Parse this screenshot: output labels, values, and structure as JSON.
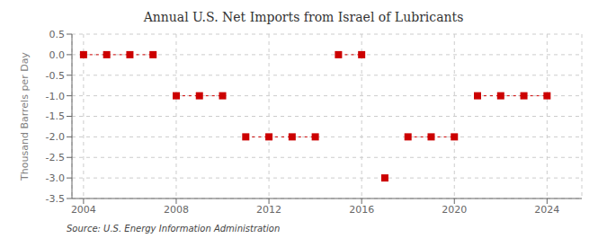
{
  "chart_data": {
    "type": "scatter",
    "title": "Annual U.S. Net Imports from Israel of Lubricants",
    "ylabel": "Thousand Barrels per Day",
    "annotations": [
      "Source: U.S. Energy Information Administration"
    ],
    "x": [
      2004,
      2005,
      2006,
      2007,
      2008,
      2009,
      2010,
      2011,
      2012,
      2013,
      2014,
      2015,
      2016,
      2017,
      2018,
      2019,
      2020,
      2021,
      2022,
      2023,
      2024
    ],
    "values": [
      0,
      0,
      0,
      0,
      -1,
      -1,
      -1,
      -2,
      -2,
      -2,
      -2,
      0,
      0,
      -3,
      -2,
      -2,
      -2,
      -1,
      -1,
      -1,
      -1
    ],
    "color": "#cc0000",
    "marker": "square",
    "line_style": "dashed",
    "grid": true,
    "xlim": [
      2003.5,
      2025.5
    ],
    "ylim": [
      -3.5,
      0.5
    ],
    "xticks": [
      2004,
      2008,
      2012,
      2016,
      2020,
      2024
    ],
    "yticks": [
      0.5,
      {
        "value": 0,
        "label": "0.0"
      },
      -0.5,
      {
        "value": -1,
        "label": "-1.0"
      },
      -1.5,
      {
        "value": -2,
        "label": "-2.0"
      },
      -2.5,
      {
        "value": -3,
        "label": "-3.0"
      },
      -3.5
    ]
  }
}
